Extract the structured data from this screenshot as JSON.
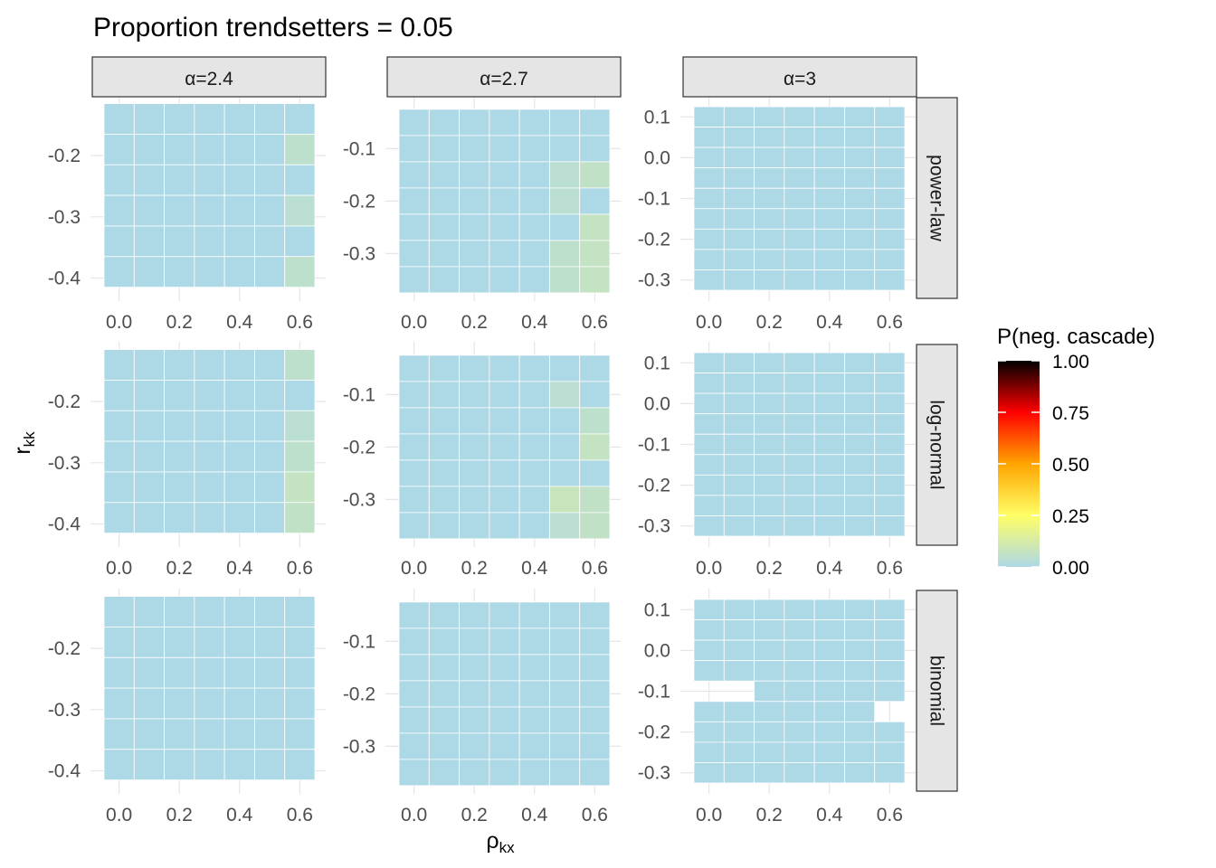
{
  "chart_data": {
    "type": "heatmap",
    "title": "Proportion trendsetters = 0.05",
    "xlabel_base": "ρ",
    "xlabel_sub": "kx",
    "ylabel_base": "r",
    "ylabel_sub": "kk",
    "col_strips": [
      "α=2.4",
      "α=2.7",
      "α=3"
    ],
    "row_strips": [
      "power-law",
      "log-normal",
      "binomial"
    ],
    "x_values": [
      0.0,
      0.1,
      0.2,
      0.3,
      0.4,
      0.5,
      0.6
    ],
    "x_ticks": [
      0.0,
      0.2,
      0.4,
      0.6
    ],
    "x_tick_labels": [
      "0.0",
      "0.2",
      "0.4",
      "0.6"
    ],
    "x_range": [
      -0.05,
      0.65
    ],
    "columns": [
      {
        "y_range": [
          -0.42,
          -0.12
        ],
        "y_ticks": [
          -0.2,
          -0.3,
          -0.4
        ],
        "y_tick_labels": [
          "-0.2",
          "-0.3",
          "-0.4"
        ],
        "y_values": [
          -0.14,
          -0.19,
          -0.24,
          -0.29,
          -0.34,
          -0.39
        ]
      },
      {
        "y_range": [
          -0.37,
          -0.02
        ],
        "y_ticks": [
          -0.1,
          -0.2,
          -0.3
        ],
        "y_tick_labels": [
          "-0.1",
          "-0.2",
          "-0.3"
        ],
        "y_values": [
          -0.05,
          -0.1,
          -0.15,
          -0.2,
          -0.25,
          -0.3,
          -0.35
        ]
      },
      {
        "y_range": [
          -0.325,
          0.125
        ],
        "y_ticks": [
          0.1,
          0.0,
          -0.1,
          -0.2,
          -0.3
        ],
        "y_tick_labels": [
          "0.1",
          "0.0",
          "-0.1",
          "-0.2",
          "-0.3"
        ],
        "y_values": [
          0.1,
          0.05,
          0.0,
          -0.05,
          -0.1,
          -0.15,
          -0.2,
          -0.25,
          -0.3
        ]
      }
    ],
    "elevated_cells": [
      {
        "row": 0,
        "col": 0,
        "x": 0.6,
        "y": -0.19,
        "value": 0.05
      },
      {
        "row": 0,
        "col": 0,
        "x": 0.6,
        "y": -0.29,
        "value": 0.04
      },
      {
        "row": 0,
        "col": 0,
        "x": 0.6,
        "y": -0.39,
        "value": 0.05
      },
      {
        "row": 0,
        "col": 1,
        "x": 0.5,
        "y": -0.15,
        "value": 0.04
      },
      {
        "row": 0,
        "col": 1,
        "x": 0.6,
        "y": -0.15,
        "value": 0.06
      },
      {
        "row": 0,
        "col": 1,
        "x": 0.5,
        "y": -0.2,
        "value": 0.04
      },
      {
        "row": 0,
        "col": 1,
        "x": 0.6,
        "y": -0.25,
        "value": 0.07
      },
      {
        "row": 0,
        "col": 1,
        "x": 0.5,
        "y": -0.3,
        "value": 0.05
      },
      {
        "row": 0,
        "col": 1,
        "x": 0.6,
        "y": -0.3,
        "value": 0.07
      },
      {
        "row": 0,
        "col": 1,
        "x": 0.5,
        "y": -0.35,
        "value": 0.05
      },
      {
        "row": 0,
        "col": 1,
        "x": 0.6,
        "y": -0.35,
        "value": 0.07
      },
      {
        "row": 1,
        "col": 0,
        "x": 0.6,
        "y": -0.14,
        "value": 0.05
      },
      {
        "row": 1,
        "col": 0,
        "x": 0.6,
        "y": -0.24,
        "value": 0.04
      },
      {
        "row": 1,
        "col": 0,
        "x": 0.6,
        "y": -0.29,
        "value": 0.05
      },
      {
        "row": 1,
        "col": 0,
        "x": 0.6,
        "y": -0.34,
        "value": 0.07
      },
      {
        "row": 1,
        "col": 0,
        "x": 0.6,
        "y": -0.39,
        "value": 0.06
      },
      {
        "row": 1,
        "col": 1,
        "x": 0.5,
        "y": -0.1,
        "value": 0.04
      },
      {
        "row": 1,
        "col": 1,
        "x": 0.6,
        "y": -0.15,
        "value": 0.05
      },
      {
        "row": 1,
        "col": 1,
        "x": 0.6,
        "y": -0.2,
        "value": 0.07
      },
      {
        "row": 1,
        "col": 1,
        "x": 0.5,
        "y": -0.3,
        "value": 0.08
      },
      {
        "row": 1,
        "col": 1,
        "x": 0.6,
        "y": -0.3,
        "value": 0.06
      },
      {
        "row": 1,
        "col": 1,
        "x": 0.5,
        "y": -0.35,
        "value": 0.04
      },
      {
        "row": 1,
        "col": 1,
        "x": 0.6,
        "y": -0.35,
        "value": 0.06
      }
    ],
    "missing_cells": [
      {
        "row": 2,
        "col": 2,
        "x": 0.0,
        "y": -0.1
      },
      {
        "row": 2,
        "col": 2,
        "x": 0.1,
        "y": -0.1
      },
      {
        "row": 2,
        "col": 2,
        "x": 0.6,
        "y": -0.15
      }
    ],
    "default_value": 0.0,
    "legend": {
      "title": "P(neg. cascade)",
      "placement": "right",
      "range": [
        0,
        1
      ],
      "ticks": [
        1.0,
        0.75,
        0.5,
        0.25,
        0.0
      ],
      "tick_labels": [
        "1.00",
        "0.75",
        "0.50",
        "0.25",
        "0.00"
      ],
      "colors": [
        {
          "stop": 0.0,
          "color": "#add8e6"
        },
        {
          "stop": 0.25,
          "color": "#ffff66"
        },
        {
          "stop": 0.5,
          "color": "#ffa500"
        },
        {
          "stop": 0.75,
          "color": "#ff0000"
        },
        {
          "stop": 1.0,
          "color": "#000000"
        }
      ]
    },
    "grid": true
  }
}
